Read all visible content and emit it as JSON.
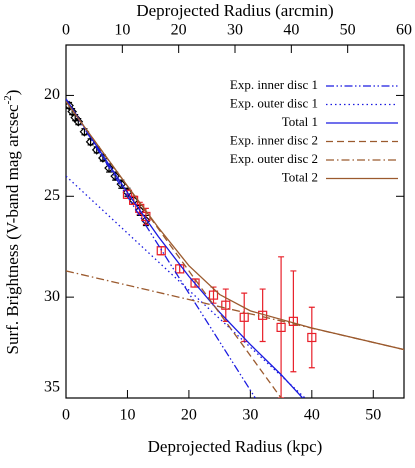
{
  "chart_data": {
    "type": "errorbar",
    "xlabel": "Deprojected Radius (kpc)",
    "x2label": "Deprojected Radius (arcmin)",
    "ylabel": {
      "text": "Surf. Brightness (V-band mag arcsec",
      "superscript": "-2",
      "end": ")"
    },
    "xlim": [
      0,
      55
    ],
    "xticks": [
      0,
      10,
      20,
      30,
      40,
      50
    ],
    "x2lim": [
      0,
      60
    ],
    "x2ticks": [
      0,
      10,
      20,
      30,
      40,
      50,
      60
    ],
    "ylim": [
      35,
      17.5
    ],
    "yticks": [
      20,
      25,
      30,
      35
    ],
    "legend": "upper right",
    "series": [
      {
        "kind": "points",
        "marker": "diamond",
        "color": "#000000",
        "x": [
          0.5,
          1,
          1.5,
          2,
          3,
          4,
          5,
          6,
          7,
          8,
          9,
          10,
          11,
          12,
          13
        ],
        "values": [
          20.5,
          20.8,
          21.1,
          21.3,
          21.8,
          22.3,
          22.7,
          23.1,
          23.6,
          24.0,
          24.4,
          24.8,
          25.2,
          25.7,
          26.2
        ],
        "errors": [
          0.15,
          0.15,
          0.15,
          0.15,
          0.15,
          0.15,
          0.15,
          0.15,
          0.2,
          0.2,
          0.2,
          0.2,
          0.2,
          0.25,
          0.25
        ]
      },
      {
        "kind": "points",
        "marker": "square",
        "color": "#e8202a",
        "x": [
          10,
          11,
          12,
          13,
          15.5,
          18.5,
          21,
          24,
          26,
          29,
          32,
          35,
          37,
          40
        ],
        "values": [
          24.9,
          25.2,
          25.6,
          26.0,
          27.7,
          28.6,
          29.3,
          29.9,
          30.4,
          31.0,
          30.9,
          31.5,
          31.2,
          32.0
        ],
        "errors": [
          0.2,
          0.2,
          0.3,
          0.4,
          0.2,
          0.2,
          0.2,
          0.4,
          0.8,
          1.2,
          1.3,
          3.5,
          2.5,
          1.5
        ]
      },
      {
        "kind": "line",
        "name": "Exp. inner disc 1",
        "color": "#1a1ae0",
        "linestyle": "dash-dot-dot",
        "x": [
          0,
          30.8
        ],
        "values": [
          20.2,
          35
        ]
      },
      {
        "kind": "line",
        "name": "Exp. outer disc 1",
        "color": "#1a1ae0",
        "linestyle": "dotted",
        "x": [
          0,
          38.9
        ],
        "values": [
          24.0,
          35
        ]
      },
      {
        "kind": "line",
        "name": "Total 1",
        "color": "#1a1ae0",
        "linestyle": "solid",
        "x": [
          0,
          5,
          10,
          15,
          20,
          25,
          30,
          35,
          38.5
        ],
        "values": [
          20.17,
          22.52,
          24.82,
          26.99,
          28.97,
          30.75,
          32.35,
          33.84,
          35
        ]
      },
      {
        "kind": "line",
        "name": "Exp. inner disc 2",
        "color": "#9b5a2e",
        "linestyle": "dashed",
        "x": [
          0,
          35
        ],
        "values": [
          20.3,
          35
        ]
      },
      {
        "kind": "line",
        "name": "Exp. outer disc 2",
        "color": "#9b5a2e",
        "linestyle": "dash-dot",
        "x": [
          0,
          55
        ],
        "values": [
          28.7,
          32.6
        ]
      },
      {
        "kind": "line",
        "name": "Total 2",
        "color": "#9b5a2e",
        "linestyle": "solid",
        "x": [
          0,
          10,
          15,
          20,
          25,
          30,
          40,
          55
        ],
        "values": [
          20.3,
          24.49,
          26.54,
          28.44,
          29.87,
          30.68,
          31.53,
          32.6
        ]
      }
    ]
  }
}
